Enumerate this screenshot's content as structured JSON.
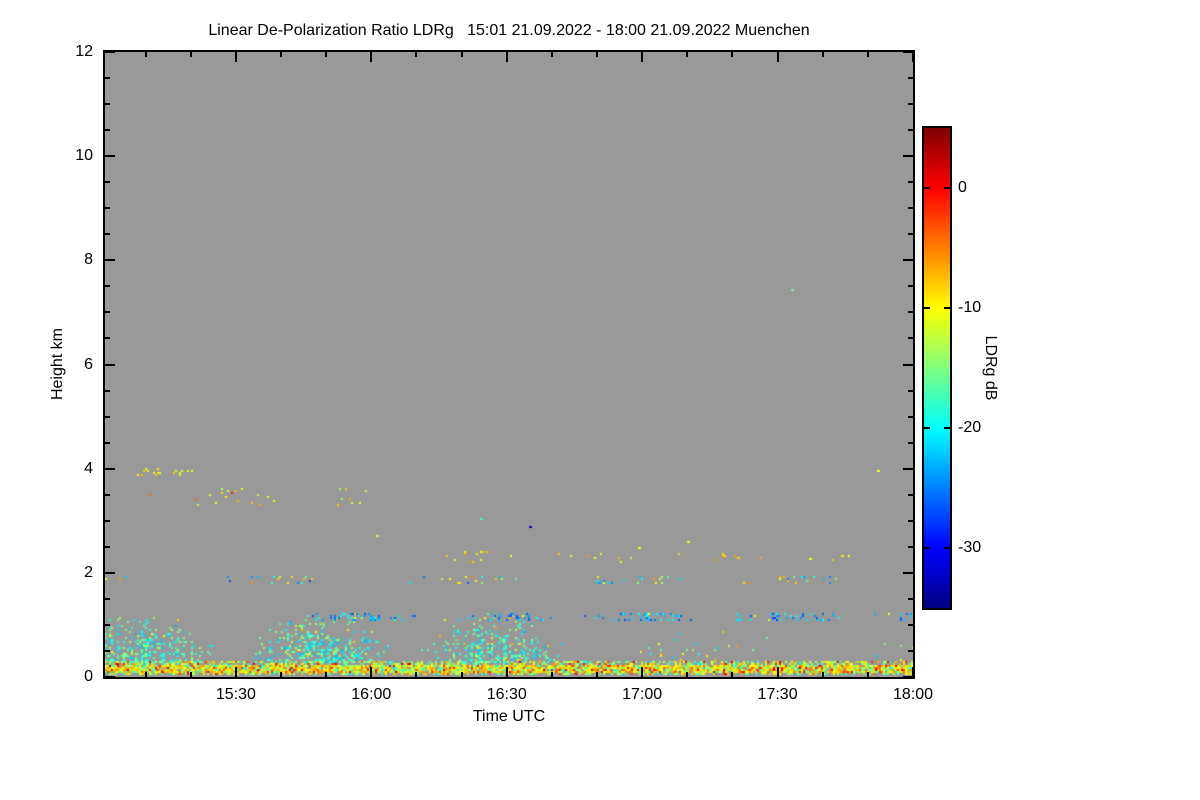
{
  "chart_data": {
    "type": "heatmap",
    "title": "Linear De-Polarization Ratio LDRg   15:01 21.09.2022 - 18:00 21.09.2022 Muenchen",
    "xlabel": "Time UTC",
    "ylabel": "Height km",
    "time_start": "15:01",
    "time_end": "18:00",
    "x_minutes_total": 179,
    "x_ticks": [
      {
        "label": "15:30",
        "minute": 29
      },
      {
        "label": "16:00",
        "minute": 59
      },
      {
        "label": "16:30",
        "minute": 89
      },
      {
        "label": "17:00",
        "minute": 119
      },
      {
        "label": "17:30",
        "minute": 149
      },
      {
        "label": "18:00",
        "minute": 179
      }
    ],
    "x_minor_step_minutes": 10,
    "ylim": [
      0,
      12
    ],
    "y_major_ticks": [
      0,
      2,
      4,
      6,
      8,
      10,
      12
    ],
    "y_minor_step": 0.5,
    "grid": false,
    "no_data_color": "#999999",
    "colorbar": {
      "label": "LDRg dB",
      "ticks": [
        0,
        -10,
        -20,
        -30
      ],
      "range": [
        -35,
        5
      ],
      "colormap": "jet"
    },
    "layers": [
      {
        "name": "surface-echo-core",
        "t0": 0,
        "t1": 179,
        "h0": 0.1,
        "h1": 0.24,
        "density": 0.85,
        "vmin": -12,
        "vmax": -4,
        "hot": 0.12,
        "hotmin": -3,
        "hotmax": 2
      },
      {
        "name": "surface-echo-mix",
        "t0": 0,
        "t1": 179,
        "h0": 0.03,
        "h1": 0.3,
        "density": 0.5,
        "vmin": -20,
        "vmax": -6,
        "hot": 0.08,
        "hotmin": -4,
        "hotmax": 1
      },
      {
        "name": "boundary-layer-dense",
        "t0": 0,
        "t1": 103,
        "h0": 0.26,
        "h1": 1.3,
        "density": 0.6,
        "vmin": -23,
        "vmax": -13,
        "hot": 0.05,
        "hotmin": -11,
        "hotmax": -5,
        "fade": true,
        "lumpy": true,
        "plume": true
      },
      {
        "name": "boundary-layer-sparse",
        "t0": 103,
        "t1": 179,
        "h0": 0.26,
        "h1": 1.0,
        "density": 0.06,
        "vmin": -23,
        "vmax": -8,
        "hot": 0.1,
        "hotmin": -8,
        "hotmax": -4,
        "fade": true,
        "lumpy": true
      },
      {
        "name": "cyan-residual-layer",
        "t0": 40,
        "t1": 179,
        "h0": 1.08,
        "h1": 1.22,
        "density": 0.28,
        "vmin": -27,
        "vmax": -19,
        "hot": 0.05,
        "hotmin": -12,
        "hotmax": -8,
        "lumpy": true
      },
      {
        "name": "thin-layer-1p85km",
        "t0": 0,
        "t1": 176,
        "h0": 1.78,
        "h1": 1.93,
        "density": 0.11,
        "vmin": -27,
        "vmax": -7,
        "hot": 0.2,
        "hotmin": -10,
        "hotmax": -5,
        "lumpy": true
      },
      {
        "name": "speckle-2p3km",
        "t0": 75,
        "t1": 172,
        "h0": 2.2,
        "h1": 2.42,
        "density": 0.05,
        "vmin": -12,
        "vmax": -6,
        "lumpy": true
      },
      {
        "name": "cluster-3p5km",
        "t0": 8,
        "t1": 58,
        "h0": 3.3,
        "h1": 3.62,
        "density": 0.06,
        "vmin": -14,
        "vmax": -6,
        "hot": 0.1,
        "hotmin": -5,
        "hotmax": 0,
        "lumpy": true
      },
      {
        "name": "cluster-4p0km",
        "t0": 7,
        "t1": 20,
        "h0": 3.82,
        "h1": 4.02,
        "density": 0.12,
        "vmin": -12,
        "vmax": -6
      },
      {
        "name": "isolated-dots",
        "points": [
          [
            60,
            2.72,
            -12
          ],
          [
            83,
            3.05,
            -18
          ],
          [
            94,
            2.9,
            -32
          ],
          [
            118,
            2.5,
            -10
          ],
          [
            140,
            2.3,
            -8
          ],
          [
            152,
            7.45,
            -16
          ],
          [
            163,
            2.35,
            -9
          ],
          [
            171,
            3.98,
            -10
          ],
          [
            129,
            2.62,
            -11
          ],
          [
            156,
            2.28,
            -10
          ]
        ]
      }
    ]
  }
}
